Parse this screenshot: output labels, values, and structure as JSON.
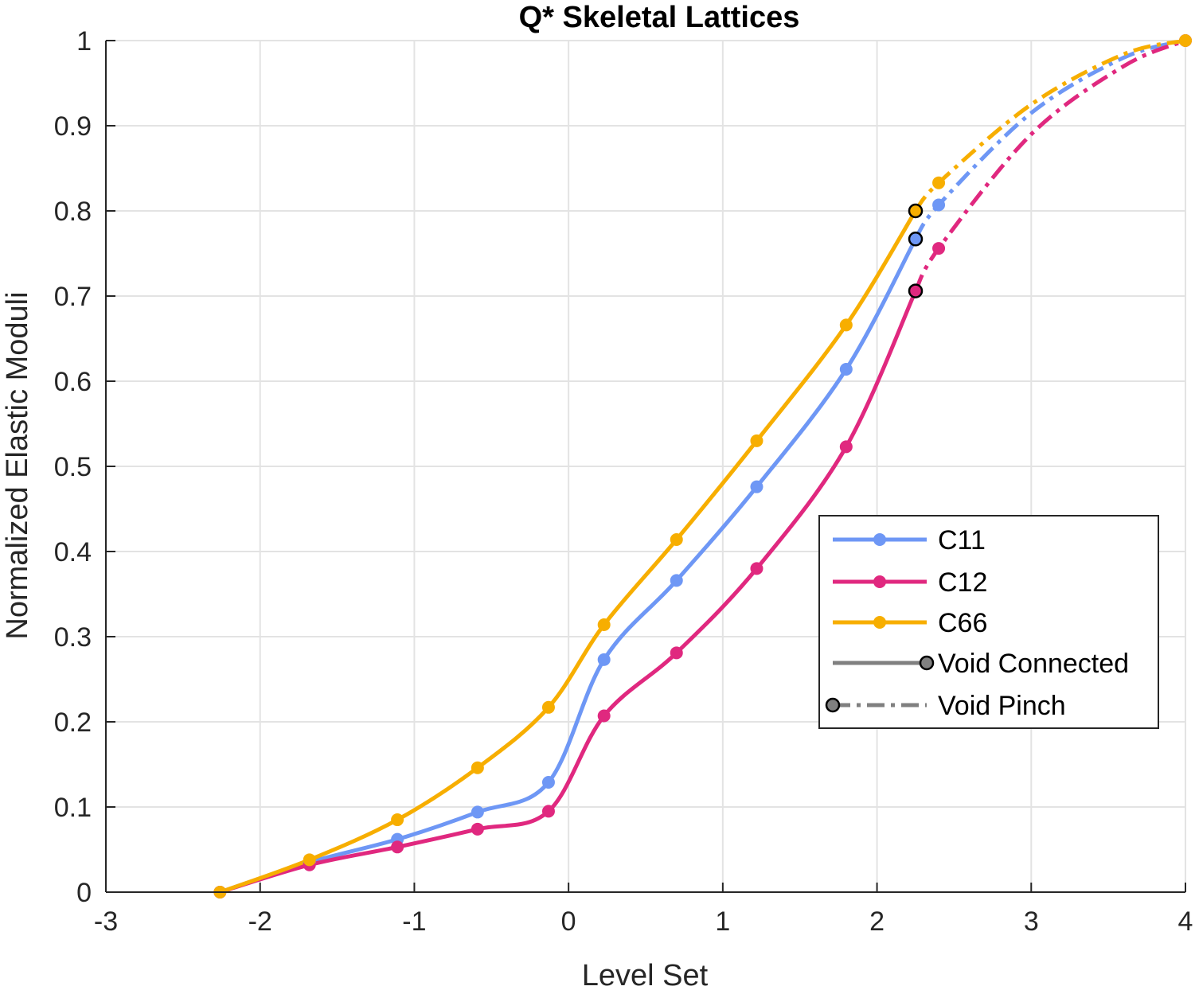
{
  "chart_data": {
    "type": "line",
    "title": "Q* Skeletal Lattices",
    "xlabel": "Level Set",
    "ylabel": "Normalized Elastic Moduli",
    "xlim": [
      -3,
      4
    ],
    "ylim": [
      0,
      1
    ],
    "xticks": [
      -3,
      -2,
      -1,
      0,
      1,
      2,
      3,
      4
    ],
    "yticks": [
      0,
      0.1,
      0.2,
      0.3,
      0.4,
      0.5,
      0.6,
      0.7,
      0.8,
      0.9,
      1
    ],
    "xtick_labels": [
      "-3",
      "-2",
      "-1",
      "0",
      "1",
      "2",
      "3",
      "4"
    ],
    "ytick_labels": [
      "0",
      "0.1",
      "0.2",
      "0.3",
      "0.4",
      "0.5",
      "0.6",
      "0.7",
      "0.8",
      "0.9",
      "1"
    ],
    "grid": true,
    "legend_position": "right",
    "series": [
      {
        "name": "C11",
        "color": "#6e97f5",
        "connected": {
          "x": [
            -2.26,
            -1.68,
            -1.11,
            -0.59,
            -0.13,
            0.23,
            0.7,
            1.22,
            1.8,
            2.25
          ],
          "y": [
            0.0,
            0.035,
            0.062,
            0.094,
            0.129,
            0.273,
            0.366,
            0.476,
            0.614,
            0.767
          ]
        },
        "pinch": {
          "x": [
            2.25,
            2.4,
            3.0,
            3.6,
            4.0
          ],
          "y": [
            0.767,
            0.807,
            0.915,
            0.98,
            1.0
          ]
        },
        "pinch_markers": [
          2.4,
          4.0
        ]
      },
      {
        "name": "C12",
        "color": "#e0287f",
        "connected": {
          "x": [
            -2.26,
            -1.68,
            -1.11,
            -0.59,
            -0.13,
            0.23,
            0.7,
            1.22,
            1.8,
            2.25
          ],
          "y": [
            0.0,
            0.032,
            0.053,
            0.074,
            0.095,
            0.207,
            0.281,
            0.38,
            0.523,
            0.706
          ]
        },
        "pinch": {
          "x": [
            2.25,
            2.4,
            3.0,
            3.6,
            4.0
          ],
          "y": [
            0.706,
            0.756,
            0.89,
            0.97,
            1.0
          ]
        },
        "pinch_markers": [
          2.4,
          4.0
        ]
      },
      {
        "name": "C66",
        "color": "#f7ae00",
        "connected": {
          "x": [
            -2.26,
            -1.68,
            -1.11,
            -0.59,
            -0.13,
            0.23,
            0.7,
            1.22,
            1.8,
            2.25
          ],
          "y": [
            0.0,
            0.038,
            0.085,
            0.146,
            0.217,
            0.314,
            0.414,
            0.53,
            0.666,
            0.8
          ]
        },
        "pinch": {
          "x": [
            2.25,
            2.4,
            3.0,
            3.6,
            4.0
          ],
          "y": [
            0.8,
            0.833,
            0.925,
            0.984,
            1.0
          ]
        },
        "pinch_markers": [
          2.4,
          4.0
        ]
      }
    ],
    "transition_points": [
      {
        "x": 2.25,
        "y": 0.8,
        "color": "#f7ae00"
      },
      {
        "x": 2.25,
        "y": 0.767,
        "color": "#6e97f5"
      },
      {
        "x": 2.25,
        "y": 0.706,
        "color": "#e0287f"
      }
    ],
    "legend": {
      "entries": [
        {
          "label": "C11",
          "color": "#6e97f5",
          "style": "solid-marker"
        },
        {
          "label": "C12",
          "color": "#e0287f",
          "style": "solid-marker"
        },
        {
          "label": "C66",
          "color": "#f7ae00",
          "style": "solid-marker"
        },
        {
          "label": "Void Connected",
          "color": "#808080",
          "style": "solid-end-circle"
        },
        {
          "label": "Void Pinch",
          "color": "#808080",
          "style": "dashed-start-circle"
        }
      ]
    }
  }
}
